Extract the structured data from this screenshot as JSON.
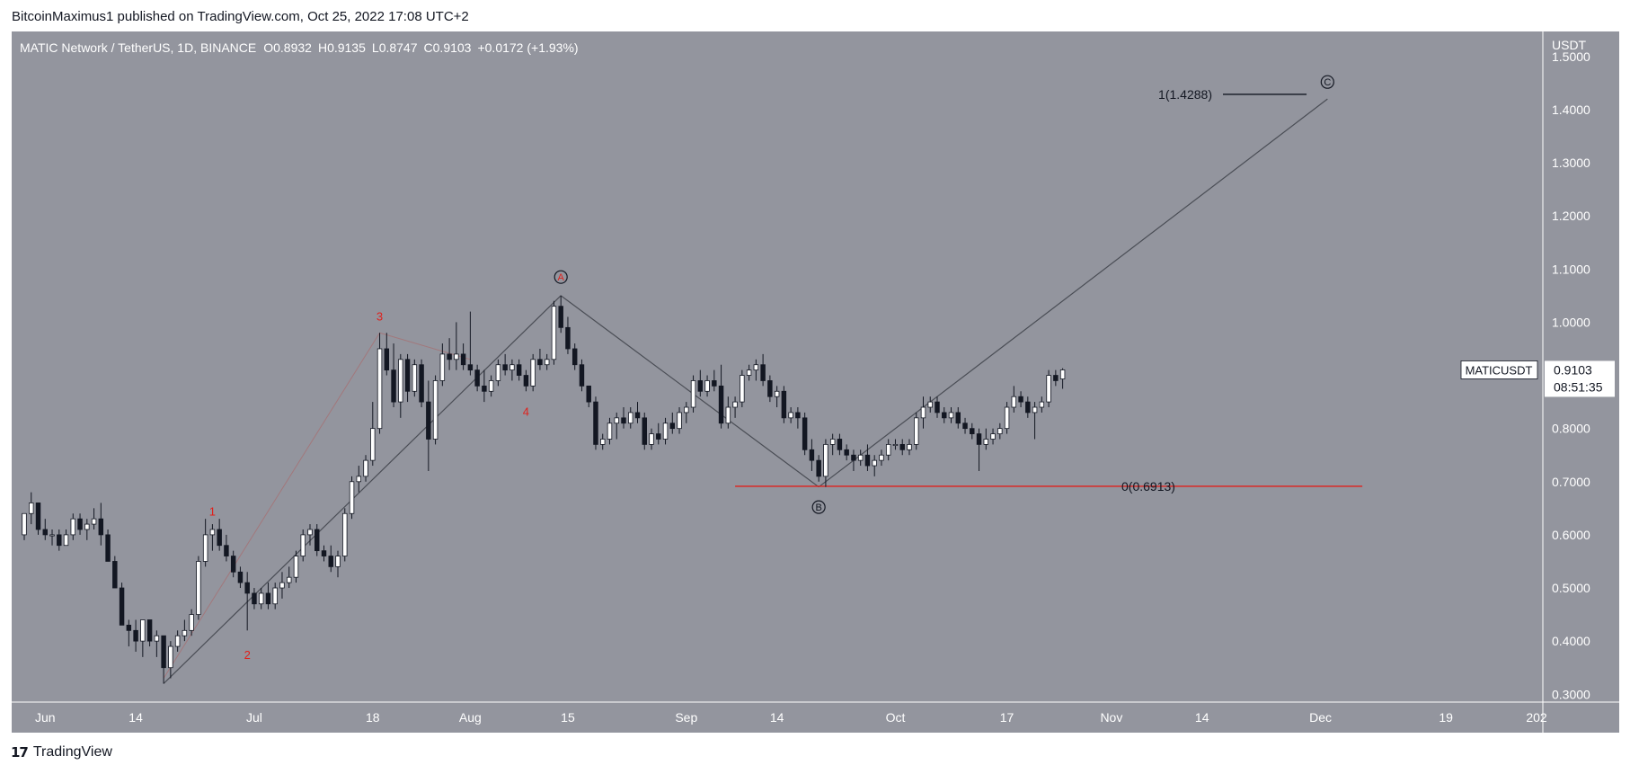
{
  "header": {
    "published": "BitcoinMaximus1 published on TradingView.com, Oct 25, 2022 17:08 UTC+2"
  },
  "footer": {
    "brand": "TradingView",
    "logo_mark": "17"
  },
  "colors": {
    "background": "#93959e",
    "panel": "#ffffff",
    "candle_up": "#ffffff",
    "candle_down": "#131722",
    "wave_label": "#e0201b",
    "support_line": "#e0201b",
    "trend_line": "#4a4d55"
  },
  "chart_data": {
    "type": "candlestick",
    "symbol_line": "MATIC Network / TetherUS, 1D, BINANCE",
    "ohlc_header": [
      {
        "key": "O",
        "value": "0.8932"
      },
      {
        "key": "H",
        "value": "0.9135"
      },
      {
        "key": "L",
        "value": "0.8747"
      },
      {
        "key": "C",
        "value": "0.9103"
      },
      {
        "key": "",
        "value": "+0.0172 (+1.93%)"
      }
    ],
    "y_axis": {
      "unit": "USDT",
      "ticks": [
        "0.3000",
        "0.4000",
        "0.5000",
        "0.6000",
        "0.7000",
        "0.8000",
        "0.9000",
        "1.0000",
        "1.1000",
        "1.2000",
        "1.3000",
        "1.4000",
        "1.5000"
      ],
      "range": [
        0.27,
        1.52
      ]
    },
    "x_axis": {
      "ticks": [
        {
          "label": "Jun",
          "date": "2022-06-01"
        },
        {
          "label": "14",
          "date": "2022-06-14"
        },
        {
          "label": "Jul",
          "date": "2022-07-01"
        },
        {
          "label": "18",
          "date": "2022-07-18"
        },
        {
          "label": "Aug",
          "date": "2022-08-01"
        },
        {
          "label": "15",
          "date": "2022-08-15"
        },
        {
          "label": "Sep",
          "date": "2022-09-01"
        },
        {
          "label": "14",
          "date": "2022-09-14"
        },
        {
          "label": "Oct",
          "date": "2022-10-01"
        },
        {
          "label": "17",
          "date": "2022-10-17"
        },
        {
          "label": "Nov",
          "date": "2022-11-01"
        },
        {
          "label": "14",
          "date": "2022-11-14"
        },
        {
          "label": "Dec",
          "date": "2022-12-01"
        },
        {
          "label": "19",
          "date": "2022-12-19"
        },
        {
          "label": "202",
          "date": "2023-01-01"
        }
      ],
      "range": [
        "2022-05-29",
        "2023-01-01"
      ]
    },
    "candles": [
      [
        "2022-05-29",
        0.6,
        0.64,
        0.59,
        0.64
      ],
      [
        "2022-05-30",
        0.64,
        0.68,
        0.62,
        0.66
      ],
      [
        "2022-05-31",
        0.66,
        0.66,
        0.6,
        0.61
      ],
      [
        "2022-06-01",
        0.61,
        0.63,
        0.59,
        0.6
      ],
      [
        "2022-06-02",
        0.6,
        0.61,
        0.58,
        0.6
      ],
      [
        "2022-06-03",
        0.6,
        0.61,
        0.57,
        0.58
      ],
      [
        "2022-06-04",
        0.58,
        0.61,
        0.58,
        0.6
      ],
      [
        "2022-06-05",
        0.6,
        0.64,
        0.59,
        0.63
      ],
      [
        "2022-06-06",
        0.63,
        0.64,
        0.6,
        0.61
      ],
      [
        "2022-06-07",
        0.61,
        0.63,
        0.59,
        0.62
      ],
      [
        "2022-06-08",
        0.62,
        0.65,
        0.61,
        0.63
      ],
      [
        "2022-06-09",
        0.63,
        0.66,
        0.58,
        0.6
      ],
      [
        "2022-06-10",
        0.6,
        0.61,
        0.55,
        0.55
      ],
      [
        "2022-06-11",
        0.55,
        0.56,
        0.5,
        0.5
      ],
      [
        "2022-06-12",
        0.5,
        0.51,
        0.43,
        0.43
      ],
      [
        "2022-06-13",
        0.43,
        0.44,
        0.39,
        0.42
      ],
      [
        "2022-06-14",
        0.42,
        0.44,
        0.38,
        0.4
      ],
      [
        "2022-06-15",
        0.4,
        0.44,
        0.37,
        0.44
      ],
      [
        "2022-06-16",
        0.44,
        0.44,
        0.39,
        0.4
      ],
      [
        "2022-06-17",
        0.4,
        0.42,
        0.37,
        0.41
      ],
      [
        "2022-06-18",
        0.41,
        0.41,
        0.32,
        0.35
      ],
      [
        "2022-06-19",
        0.35,
        0.4,
        0.33,
        0.39
      ],
      [
        "2022-06-20",
        0.39,
        0.42,
        0.38,
        0.41
      ],
      [
        "2022-06-21",
        0.41,
        0.44,
        0.4,
        0.42
      ],
      [
        "2022-06-22",
        0.42,
        0.46,
        0.41,
        0.45
      ],
      [
        "2022-06-23",
        0.45,
        0.56,
        0.44,
        0.55
      ],
      [
        "2022-06-24",
        0.55,
        0.63,
        0.54,
        0.6
      ],
      [
        "2022-06-25",
        0.6,
        0.62,
        0.57,
        0.61
      ],
      [
        "2022-06-26",
        0.61,
        0.63,
        0.57,
        0.58
      ],
      [
        "2022-06-27",
        0.58,
        0.6,
        0.55,
        0.56
      ],
      [
        "2022-06-28",
        0.56,
        0.57,
        0.52,
        0.53
      ],
      [
        "2022-06-29",
        0.53,
        0.54,
        0.5,
        0.51
      ],
      [
        "2022-06-30",
        0.51,
        0.53,
        0.42,
        0.49
      ],
      [
        "2022-07-01",
        0.49,
        0.5,
        0.46,
        0.47
      ],
      [
        "2022-07-02",
        0.47,
        0.5,
        0.46,
        0.49
      ],
      [
        "2022-07-03",
        0.49,
        0.51,
        0.46,
        0.47
      ],
      [
        "2022-07-04",
        0.47,
        0.51,
        0.46,
        0.5
      ],
      [
        "2022-07-05",
        0.5,
        0.53,
        0.48,
        0.51
      ],
      [
        "2022-07-06",
        0.51,
        0.54,
        0.5,
        0.52
      ],
      [
        "2022-07-07",
        0.52,
        0.57,
        0.51,
        0.56
      ],
      [
        "2022-07-08",
        0.56,
        0.61,
        0.55,
        0.6
      ],
      [
        "2022-07-09",
        0.6,
        0.62,
        0.58,
        0.61
      ],
      [
        "2022-07-10",
        0.61,
        0.62,
        0.56,
        0.57
      ],
      [
        "2022-07-11",
        0.57,
        0.58,
        0.55,
        0.56
      ],
      [
        "2022-07-12",
        0.56,
        0.58,
        0.53,
        0.54
      ],
      [
        "2022-07-13",
        0.54,
        0.57,
        0.52,
        0.56
      ],
      [
        "2022-07-14",
        0.56,
        0.65,
        0.55,
        0.64
      ],
      [
        "2022-07-15",
        0.64,
        0.71,
        0.63,
        0.7
      ],
      [
        "2022-07-16",
        0.7,
        0.73,
        0.68,
        0.71
      ],
      [
        "2022-07-17",
        0.71,
        0.75,
        0.7,
        0.74
      ],
      [
        "2022-07-18",
        0.74,
        0.85,
        0.73,
        0.8
      ],
      [
        "2022-07-19",
        0.8,
        0.98,
        0.79,
        0.95
      ],
      [
        "2022-07-20",
        0.95,
        0.98,
        0.9,
        0.91
      ],
      [
        "2022-07-21",
        0.91,
        0.96,
        0.84,
        0.85
      ],
      [
        "2022-07-22",
        0.85,
        0.94,
        0.82,
        0.93
      ],
      [
        "2022-07-23",
        0.93,
        0.94,
        0.85,
        0.87
      ],
      [
        "2022-07-24",
        0.87,
        0.93,
        0.86,
        0.92
      ],
      [
        "2022-07-25",
        0.92,
        0.93,
        0.84,
        0.85
      ],
      [
        "2022-07-26",
        0.85,
        0.89,
        0.72,
        0.78
      ],
      [
        "2022-07-27",
        0.78,
        0.9,
        0.77,
        0.89
      ],
      [
        "2022-07-28",
        0.89,
        0.96,
        0.88,
        0.94
      ],
      [
        "2022-07-29",
        0.94,
        0.97,
        0.91,
        0.93
      ],
      [
        "2022-07-30",
        0.93,
        1.0,
        0.91,
        0.94
      ],
      [
        "2022-07-31",
        0.94,
        0.96,
        0.91,
        0.92
      ],
      [
        "2022-08-01",
        0.92,
        1.02,
        0.9,
        0.91
      ],
      [
        "2022-08-02",
        0.91,
        0.92,
        0.87,
        0.88
      ],
      [
        "2022-08-03",
        0.88,
        0.91,
        0.85,
        0.87
      ],
      [
        "2022-08-04",
        0.87,
        0.9,
        0.86,
        0.89
      ],
      [
        "2022-08-05",
        0.89,
        0.93,
        0.88,
        0.92
      ],
      [
        "2022-08-06",
        0.92,
        0.94,
        0.9,
        0.91
      ],
      [
        "2022-08-07",
        0.91,
        0.93,
        0.89,
        0.92
      ],
      [
        "2022-08-08",
        0.92,
        0.93,
        0.89,
        0.9
      ],
      [
        "2022-08-09",
        0.9,
        0.91,
        0.87,
        0.88
      ],
      [
        "2022-08-10",
        0.88,
        0.94,
        0.87,
        0.93
      ],
      [
        "2022-08-11",
        0.93,
        0.95,
        0.91,
        0.92
      ],
      [
        "2022-08-12",
        0.92,
        0.94,
        0.91,
        0.93
      ],
      [
        "2022-08-13",
        0.93,
        1.04,
        0.92,
        1.03
      ],
      [
        "2022-08-14",
        1.03,
        1.05,
        0.98,
        0.99
      ],
      [
        "2022-08-15",
        0.99,
        1.01,
        0.94,
        0.95
      ],
      [
        "2022-08-16",
        0.95,
        0.96,
        0.91,
        0.92
      ],
      [
        "2022-08-17",
        0.92,
        0.93,
        0.87,
        0.88
      ],
      [
        "2022-08-18",
        0.88,
        0.88,
        0.84,
        0.85
      ],
      [
        "2022-08-19",
        0.85,
        0.86,
        0.76,
        0.77
      ],
      [
        "2022-08-20",
        0.77,
        0.79,
        0.76,
        0.78
      ],
      [
        "2022-08-21",
        0.78,
        0.82,
        0.77,
        0.81
      ],
      [
        "2022-08-22",
        0.81,
        0.83,
        0.78,
        0.82
      ],
      [
        "2022-08-23",
        0.82,
        0.84,
        0.8,
        0.81
      ],
      [
        "2022-08-24",
        0.81,
        0.84,
        0.8,
        0.83
      ],
      [
        "2022-08-25",
        0.83,
        0.85,
        0.81,
        0.82
      ],
      [
        "2022-08-26",
        0.82,
        0.83,
        0.76,
        0.77
      ],
      [
        "2022-08-27",
        0.77,
        0.8,
        0.76,
        0.79
      ],
      [
        "2022-08-28",
        0.79,
        0.81,
        0.77,
        0.78
      ],
      [
        "2022-08-29",
        0.78,
        0.82,
        0.77,
        0.81
      ],
      [
        "2022-08-30",
        0.81,
        0.83,
        0.79,
        0.8
      ],
      [
        "2022-08-31",
        0.8,
        0.84,
        0.79,
        0.83
      ],
      [
        "2022-09-01",
        0.83,
        0.85,
        0.81,
        0.84
      ],
      [
        "2022-09-02",
        0.84,
        0.9,
        0.83,
        0.89
      ],
      [
        "2022-09-03",
        0.89,
        0.91,
        0.86,
        0.87
      ],
      [
        "2022-09-04",
        0.87,
        0.9,
        0.86,
        0.89
      ],
      [
        "2022-09-05",
        0.89,
        0.91,
        0.87,
        0.88
      ],
      [
        "2022-09-06",
        0.88,
        0.92,
        0.8,
        0.81
      ],
      [
        "2022-09-07",
        0.81,
        0.86,
        0.8,
        0.84
      ],
      [
        "2022-09-08",
        0.84,
        0.86,
        0.82,
        0.85
      ],
      [
        "2022-09-09",
        0.85,
        0.91,
        0.84,
        0.9
      ],
      [
        "2022-09-10",
        0.9,
        0.92,
        0.89,
        0.91
      ],
      [
        "2022-09-11",
        0.91,
        0.93,
        0.89,
        0.92
      ],
      [
        "2022-09-12",
        0.92,
        0.94,
        0.88,
        0.89
      ],
      [
        "2022-09-13",
        0.89,
        0.9,
        0.85,
        0.86
      ],
      [
        "2022-09-14",
        0.86,
        0.88,
        0.84,
        0.87
      ],
      [
        "2022-09-15",
        0.87,
        0.88,
        0.81,
        0.82
      ],
      [
        "2022-09-16",
        0.82,
        0.84,
        0.81,
        0.83
      ],
      [
        "2022-09-17",
        0.83,
        0.84,
        0.8,
        0.82
      ],
      [
        "2022-09-18",
        0.82,
        0.83,
        0.75,
        0.76
      ],
      [
        "2022-09-19",
        0.76,
        0.78,
        0.72,
        0.74
      ],
      [
        "2022-09-20",
        0.74,
        0.75,
        0.7,
        0.71
      ],
      [
        "2022-09-21",
        0.71,
        0.78,
        0.69,
        0.77
      ],
      [
        "2022-09-22",
        0.77,
        0.79,
        0.75,
        0.78
      ],
      [
        "2022-09-23",
        0.78,
        0.79,
        0.75,
        0.76
      ],
      [
        "2022-09-24",
        0.76,
        0.77,
        0.74,
        0.75
      ],
      [
        "2022-09-25",
        0.75,
        0.76,
        0.72,
        0.74
      ],
      [
        "2022-09-26",
        0.74,
        0.76,
        0.73,
        0.75
      ],
      [
        "2022-09-27",
        0.75,
        0.77,
        0.72,
        0.73
      ],
      [
        "2022-09-28",
        0.73,
        0.75,
        0.71,
        0.74
      ],
      [
        "2022-09-29",
        0.74,
        0.76,
        0.73,
        0.75
      ],
      [
        "2022-09-30",
        0.75,
        0.78,
        0.74,
        0.77
      ],
      [
        "2022-10-01",
        0.77,
        0.78,
        0.76,
        0.77
      ],
      [
        "2022-10-02",
        0.77,
        0.78,
        0.75,
        0.76
      ],
      [
        "2022-10-03",
        0.76,
        0.78,
        0.75,
        0.77
      ],
      [
        "2022-10-04",
        0.77,
        0.83,
        0.76,
        0.82
      ],
      [
        "2022-10-05",
        0.82,
        0.86,
        0.8,
        0.84
      ],
      [
        "2022-10-06",
        0.84,
        0.86,
        0.83,
        0.85
      ],
      [
        "2022-10-07",
        0.85,
        0.86,
        0.82,
        0.83
      ],
      [
        "2022-10-08",
        0.83,
        0.84,
        0.81,
        0.82
      ],
      [
        "2022-10-09",
        0.82,
        0.84,
        0.81,
        0.83
      ],
      [
        "2022-10-10",
        0.83,
        0.84,
        0.8,
        0.81
      ],
      [
        "2022-10-11",
        0.81,
        0.82,
        0.79,
        0.8
      ],
      [
        "2022-10-12",
        0.8,
        0.81,
        0.78,
        0.79
      ],
      [
        "2022-10-13",
        0.79,
        0.8,
        0.72,
        0.77
      ],
      [
        "2022-10-14",
        0.77,
        0.8,
        0.76,
        0.78
      ],
      [
        "2022-10-15",
        0.78,
        0.8,
        0.77,
        0.79
      ],
      [
        "2022-10-16",
        0.79,
        0.81,
        0.78,
        0.8
      ],
      [
        "2022-10-17",
        0.8,
        0.85,
        0.79,
        0.84
      ],
      [
        "2022-10-18",
        0.84,
        0.88,
        0.83,
        0.86
      ],
      [
        "2022-10-19",
        0.86,
        0.87,
        0.84,
        0.85
      ],
      [
        "2022-10-20",
        0.85,
        0.86,
        0.82,
        0.83
      ],
      [
        "2022-10-21",
        0.83,
        0.85,
        0.78,
        0.84
      ],
      [
        "2022-10-22",
        0.84,
        0.86,
        0.83,
        0.85
      ],
      [
        "2022-10-23",
        0.85,
        0.91,
        0.84,
        0.9
      ],
      [
        "2022-10-24",
        0.9,
        0.91,
        0.88,
        0.89
      ],
      [
        "2022-10-25",
        0.8932,
        0.9135,
        0.8747,
        0.9103
      ]
    ],
    "wave_labels": [
      {
        "label": "1",
        "date": "2022-06-25",
        "value": 0.645
      },
      {
        "label": "2",
        "date": "2022-06-30",
        "value": 0.375
      },
      {
        "label": "3",
        "date": "2022-07-19",
        "value": 1.012
      },
      {
        "label": "4",
        "date": "2022-08-09",
        "value": 0.832
      }
    ],
    "wave_markers": [
      {
        "label": "A",
        "date": "2022-08-14",
        "value": 1.085,
        "color": "#e0201b"
      },
      {
        "label": "B",
        "date": "2022-09-20",
        "value": 0.652,
        "color": "#131722"
      },
      {
        "label": "C",
        "date": "2022-12-02",
        "value": 1.452,
        "color": "#131722"
      }
    ],
    "wave_path": [
      {
        "date": "2022-06-18",
        "value": 0.32
      },
      {
        "date": "2022-08-14",
        "value": 1.05
      },
      {
        "date": "2022-09-20",
        "value": 0.69
      },
      {
        "date": "2022-12-02",
        "value": 1.42
      }
    ],
    "subwave_path": [
      {
        "date": "2022-06-18",
        "value": 0.33
      },
      {
        "date": "2022-07-19",
        "value": 0.98
      },
      {
        "date": "2022-08-01",
        "value": 0.93
      }
    ],
    "fib_levels": [
      {
        "label": "1(1.4288)",
        "value": 1.4288,
        "start": "2022-11-17",
        "end": "2022-11-29",
        "color": "#131722"
      },
      {
        "label": "0(0.6913)",
        "value": 0.6913,
        "start": "2022-09-08",
        "end": "2022-12-07",
        "color": "#e0201b"
      }
    ],
    "price_badge": {
      "symbol": "MATICUSDT",
      "price": "0.9103",
      "countdown": "08:51:35",
      "value": 0.9103
    }
  }
}
